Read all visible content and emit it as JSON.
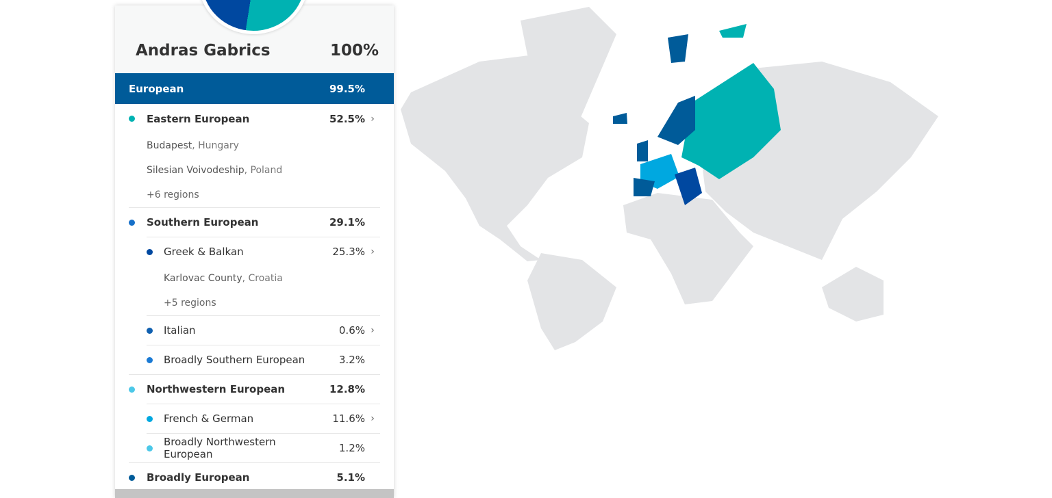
{
  "profile": {
    "name": "Andras Gabrics",
    "total": "100%"
  },
  "top": {
    "label": "European",
    "pct": "99.5%",
    "color": "#005b99"
  },
  "rows": [
    {
      "label": "Eastern European",
      "pct": "52.5%",
      "color": "#00b2b2",
      "level": 1,
      "chevron": true,
      "regions": [
        {
          "place": "Budapest",
          "country": ", Hungary"
        },
        {
          "place": "Silesian Voivodeship",
          "country": ", Poland"
        }
      ],
      "more": "+6 regions"
    },
    {
      "label": "Southern European",
      "pct": "29.1%",
      "color": "#1670c9",
      "level": 1
    },
    {
      "label": "Greek & Balkan",
      "pct": "25.3%",
      "color": "#0048a0",
      "level": 2,
      "chevron": true,
      "regions": [
        {
          "place": "Karlovac County",
          "country": ", Croatia"
        }
      ],
      "more": "+5 regions"
    },
    {
      "label": "Italian",
      "pct": "0.6%",
      "color": "#1060b0",
      "level": 2,
      "chevron": true
    },
    {
      "label": "Broadly Southern European",
      "pct": "3.2%",
      "color": "#1a7ad4",
      "level": 2
    },
    {
      "label": "Northwestern European",
      "pct": "12.8%",
      "color": "#4cc8e8",
      "level": 1
    },
    {
      "label": "French & German",
      "pct": "11.6%",
      "color": "#00a8e0",
      "level": 2,
      "chevron": true
    },
    {
      "label": "Broadly Northwestern European",
      "pct": "1.2%",
      "color": "#4cc8e8",
      "level": 2
    },
    {
      "label": "Broadly European",
      "pct": "5.1%",
      "color": "#005b99",
      "level": 1
    }
  ],
  "chevron_icon": "chevron-right-icon",
  "map_colors": {
    "land": "#e3e4e6",
    "eastern": "#00b2b2",
    "balkan": "#0048a0",
    "french_german": "#00a8e0",
    "northwestern": "#005b99"
  }
}
